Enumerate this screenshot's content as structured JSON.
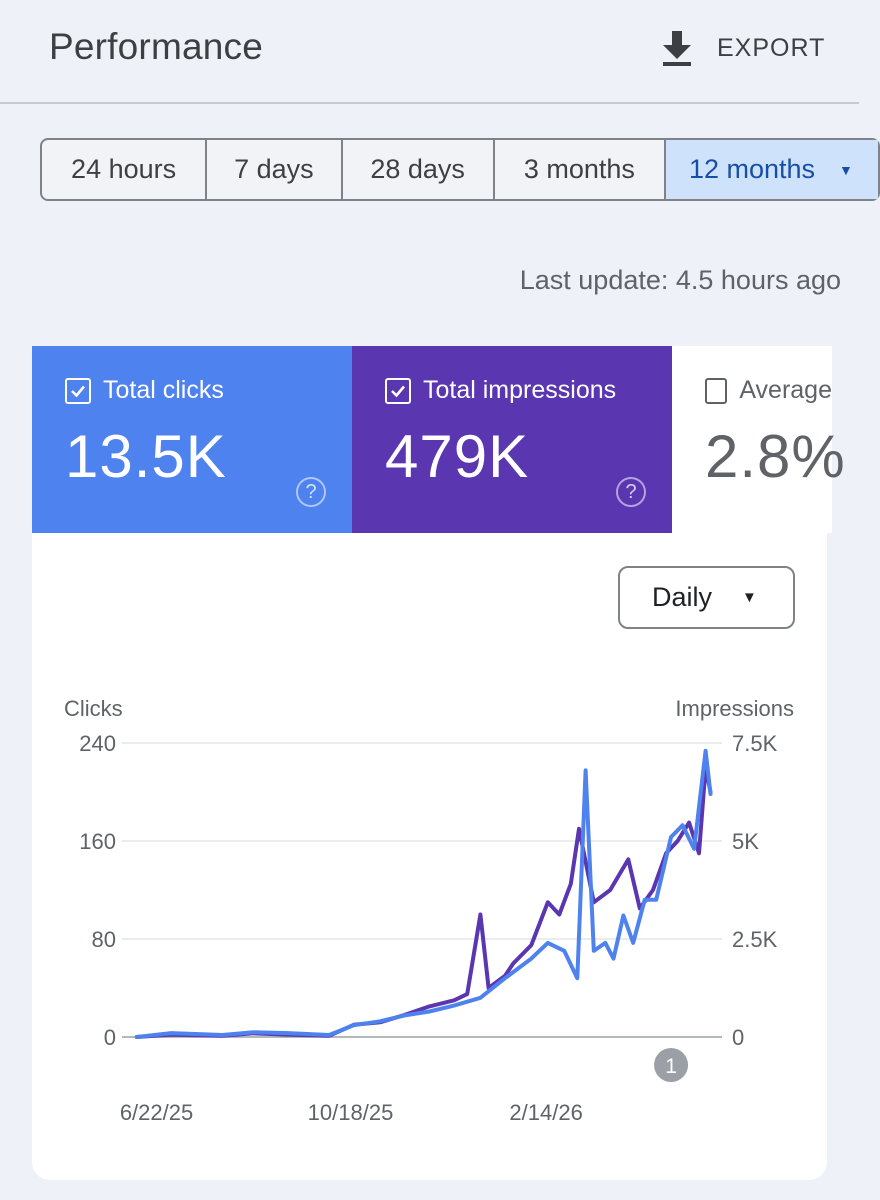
{
  "header": {
    "title": "Performance",
    "export_label": "EXPORT",
    "export_icon": "download-icon"
  },
  "ranges": [
    {
      "label": "24 hours",
      "selected": false
    },
    {
      "label": "7 days",
      "selected": false
    },
    {
      "label": "28 days",
      "selected": false
    },
    {
      "label": "3 months",
      "selected": false
    },
    {
      "label": "12 months",
      "selected": true
    }
  ],
  "last_update": "Last update: 4.5 hours ago",
  "metrics": {
    "clicks": {
      "label": "Total clicks",
      "value": "13.5K",
      "checked": true,
      "color": "#4e82ee"
    },
    "impressions": {
      "label": "Total impressions",
      "value": "479K",
      "checked": true,
      "color": "#5a36b0"
    },
    "ctr": {
      "label": "Average",
      "value": "2.8%",
      "checked": false
    }
  },
  "granularity": "Daily",
  "chart_data": {
    "type": "line",
    "left_axis": {
      "label": "Clicks",
      "ticks": [
        "240",
        "160",
        "80",
        "0"
      ],
      "range": [
        0,
        240
      ]
    },
    "right_axis": {
      "label": "Impressions",
      "ticks": [
        "7.5K",
        "5K",
        "2.5K",
        "0"
      ],
      "range": [
        0,
        7500
      ]
    },
    "x_ticks": [
      "6/22/25",
      "10/18/25",
      "2/14/26"
    ],
    "grid": true,
    "annotation": "1",
    "series": [
      {
        "axis": "left",
        "color": "#5a36b0",
        "x": [
          "2025-06-10",
          "2025-07-01",
          "2025-08-01",
          "2025-08-20",
          "2025-09-10",
          "2025-10-05",
          "2025-10-20",
          "2025-11-05",
          "2025-11-20",
          "2025-12-05",
          "2025-12-20",
          "2025-12-28",
          "2026-01-05",
          "2026-01-10",
          "2026-01-20",
          "2026-01-25",
          "2026-02-05",
          "2026-02-15",
          "2026-02-22",
          "2026-03-01",
          "2026-03-06",
          "2026-03-15",
          "2026-03-25",
          "2026-04-05",
          "2026-04-12",
          "2026-04-20",
          "2026-04-28",
          "2026-05-05",
          "2026-05-12",
          "2026-05-18",
          "2026-05-22",
          "2026-05-25"
        ],
        "y": [
          0,
          2,
          1,
          3,
          2,
          1,
          10,
          12,
          18,
          25,
          30,
          35,
          100,
          40,
          50,
          60,
          75,
          110,
          100,
          125,
          170,
          110,
          120,
          145,
          105,
          120,
          150,
          160,
          175,
          150,
          220,
          200
        ]
      },
      {
        "axis": "right",
        "color": "#4e82ee",
        "x": [
          "2025-06-10",
          "2025-07-01",
          "2025-08-01",
          "2025-08-20",
          "2025-09-10",
          "2025-10-05",
          "2025-10-20",
          "2025-11-05",
          "2025-11-20",
          "2025-12-05",
          "2025-12-20",
          "2026-01-05",
          "2026-01-20",
          "2026-02-05",
          "2026-02-15",
          "2026-02-25",
          "2026-03-05",
          "2026-03-10",
          "2026-03-15",
          "2026-03-22",
          "2026-03-27",
          "2026-04-02",
          "2026-04-08",
          "2026-04-15",
          "2026-04-22",
          "2026-05-01",
          "2026-05-08",
          "2026-05-15",
          "2026-05-22",
          "2026-05-25"
        ],
        "y": [
          0,
          100,
          50,
          120,
          100,
          50,
          300,
          400,
          550,
          650,
          800,
          1000,
          1500,
          2000,
          2400,
          2200,
          1500,
          6800,
          2200,
          2400,
          2000,
          3100,
          2400,
          3500,
          3500,
          5100,
          5400,
          4800,
          7300,
          6200
        ]
      }
    ]
  }
}
